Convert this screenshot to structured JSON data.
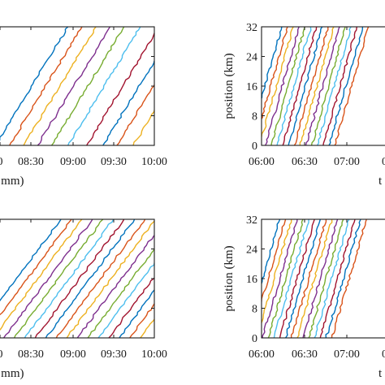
{
  "palette": [
    "#0072BD",
    "#D95319",
    "#EDB120",
    "#7E2F8E",
    "#77AC30",
    "#4DBEEE",
    "#A2142F"
  ],
  "chart_data": [
    {
      "type": "line",
      "panel": "top-left",
      "xlabel_visible": ":mm)",
      "x_ticks": [
        "0",
        "08:30",
        "09:00",
        "09:30",
        "10:00"
      ],
      "y_ticks": [],
      "trajectories": [
        {
          "x": [
            "07:44",
            "08:46"
          ],
          "y": [
            0,
            32
          ]
        },
        {
          "x": [
            "07:56",
            "08:58"
          ],
          "y": [
            0,
            32
          ]
        },
        {
          "x": [
            "08:08",
            "09:10"
          ],
          "y": [
            0,
            32
          ]
        },
        {
          "x": [
            "08:20",
            "09:22"
          ],
          "y": [
            0,
            32
          ]
        },
        {
          "x": [
            "08:32",
            "09:34"
          ],
          "y": [
            0,
            32
          ]
        },
        {
          "x": [
            "08:46",
            "09:48"
          ],
          "y": [
            0,
            32
          ]
        },
        {
          "x": [
            "09:02",
            "10:04"
          ],
          "y": [
            0,
            32
          ]
        },
        {
          "x": [
            "09:16",
            "10:18"
          ],
          "y": [
            0,
            32
          ]
        },
        {
          "x": [
            "09:28",
            "10:30"
          ],
          "y": [
            0,
            32
          ]
        },
        {
          "x": [
            "09:42",
            "10:44"
          ],
          "y": [
            0,
            32
          ]
        }
      ]
    },
    {
      "type": "line",
      "panel": "top-right",
      "ylabel": "position (km)",
      "xlabel_visible": "t",
      "x_ticks": [
        "06:00",
        "06:30",
        "07:00",
        "07"
      ],
      "y_ticks": [
        "0",
        "8",
        "16",
        "24",
        "32"
      ],
      "ylim": [
        0,
        32
      ],
      "trajectories": [
        {
          "x": [
            "05:21",
            "05:56"
          ],
          "y": [
            0,
            32
          ]
        },
        {
          "x": [
            "05:27",
            "06:02"
          ],
          "y": [
            0,
            32
          ]
        },
        {
          "x": [
            "05:33",
            "06:08"
          ],
          "y": [
            0,
            32
          ]
        },
        {
          "x": [
            "05:39",
            "06:14"
          ],
          "y": [
            0,
            32
          ]
        },
        {
          "x": [
            "05:45",
            "06:20"
          ],
          "y": [
            0,
            32
          ]
        },
        {
          "x": [
            "05:51",
            "06:26"
          ],
          "y": [
            0,
            32
          ]
        },
        {
          "x": [
            "05:57",
            "06:32"
          ],
          "y": [
            0,
            32
          ]
        },
        {
          "x": [
            "06:03",
            "06:38"
          ],
          "y": [
            0,
            32
          ]
        },
        {
          "x": [
            "06:09",
            "06:44"
          ],
          "y": [
            0,
            32
          ]
        },
        {
          "x": [
            "06:15",
            "06:50"
          ],
          "y": [
            0,
            32
          ]
        },
        {
          "x": [
            "06:21",
            "06:56"
          ],
          "y": [
            0,
            32
          ]
        },
        {
          "x": [
            "06:27",
            "07:02"
          ],
          "y": [
            0,
            32
          ]
        },
        {
          "x": [
            "06:33",
            "07:08"
          ],
          "y": [
            0,
            32
          ]
        },
        {
          "x": [
            "06:39",
            "07:14"
          ],
          "y": [
            0,
            32
          ]
        },
        {
          "x": [
            "06:45",
            "07:20"
          ],
          "y": [
            0,
            32
          ]
        },
        {
          "x": [
            "06:51",
            "07:26"
          ],
          "y": [
            0,
            32
          ]
        }
      ]
    },
    {
      "type": "line",
      "panel": "bottom-left",
      "xlabel_visible": ":mm)",
      "x_ticks": [
        "0",
        "08:30",
        "09:00",
        "09:30",
        "10:00"
      ],
      "y_ticks": [],
      "trajectories": [
        {
          "x": [
            "07:24",
            "08:40"
          ],
          "y": [
            0,
            32
          ]
        },
        {
          "x": [
            "07:33",
            "08:49"
          ],
          "y": [
            0,
            32
          ]
        },
        {
          "x": [
            "07:42",
            "08:58"
          ],
          "y": [
            0,
            32
          ]
        },
        {
          "x": [
            "07:51",
            "09:07"
          ],
          "y": [
            0,
            32
          ]
        },
        {
          "x": [
            "08:00",
            "09:16"
          ],
          "y": [
            0,
            32
          ]
        },
        {
          "x": [
            "08:09",
            "09:25"
          ],
          "y": [
            0,
            32
          ]
        },
        {
          "x": [
            "08:18",
            "09:34"
          ],
          "y": [
            0,
            32
          ]
        },
        {
          "x": [
            "08:27",
            "09:43"
          ],
          "y": [
            0,
            32
          ]
        },
        {
          "x": [
            "08:36",
            "09:52"
          ],
          "y": [
            0,
            32
          ]
        },
        {
          "x": [
            "08:45",
            "10:01"
          ],
          "y": [
            0,
            32
          ]
        },
        {
          "x": [
            "08:54",
            "10:10"
          ],
          "y": [
            0,
            32
          ]
        },
        {
          "x": [
            "09:03",
            "10:19"
          ],
          "y": [
            0,
            32
          ]
        },
        {
          "x": [
            "09:12",
            "10:28"
          ],
          "y": [
            0,
            32
          ]
        },
        {
          "x": [
            "09:21",
            "10:37"
          ],
          "y": [
            0,
            32
          ]
        },
        {
          "x": [
            "09:30",
            "10:46"
          ],
          "y": [
            0,
            32
          ]
        },
        {
          "x": [
            "09:39",
            "10:55"
          ],
          "y": [
            0,
            32
          ]
        },
        {
          "x": [
            "09:48",
            "11:04"
          ],
          "y": [
            0,
            32
          ]
        }
      ]
    },
    {
      "type": "line",
      "panel": "bottom-right",
      "ylabel": "position (km)",
      "xlabel_visible": "t",
      "x_ticks": [
        "06:00",
        "06:30",
        "07:00",
        "07"
      ],
      "y_ticks": [
        "0",
        "8",
        "16",
        "24",
        "32"
      ],
      "ylim": [
        0,
        32
      ],
      "trajectories": [
        {
          "x": [
            "05:18",
            "05:54"
          ],
          "y": [
            0,
            32
          ]
        },
        {
          "x": [
            "05:24",
            "06:00"
          ],
          "y": [
            0,
            32
          ]
        },
        {
          "x": [
            "05:30",
            "06:06"
          ],
          "y": [
            0,
            32
          ]
        },
        {
          "x": [
            "05:36",
            "06:12"
          ],
          "y": [
            0,
            32
          ]
        },
        {
          "x": [
            "05:42",
            "06:18"
          ],
          "y": [
            0,
            32
          ]
        },
        {
          "x": [
            "05:48",
            "06:24"
          ],
          "y": [
            0,
            32
          ]
        },
        {
          "x": [
            "05:54",
            "06:30"
          ],
          "y": [
            0,
            32
          ]
        },
        {
          "x": [
            "06:00",
            "06:36"
          ],
          "y": [
            0,
            32
          ]
        },
        {
          "x": [
            "06:06",
            "06:42"
          ],
          "y": [
            0,
            32
          ]
        },
        {
          "x": [
            "06:12",
            "06:48"
          ],
          "y": [
            0,
            32
          ]
        },
        {
          "x": [
            "06:18",
            "06:54"
          ],
          "y": [
            0,
            32
          ]
        },
        {
          "x": [
            "06:24",
            "07:00"
          ],
          "y": [
            0,
            32
          ]
        },
        {
          "x": [
            "06:30",
            "07:06"
          ],
          "y": [
            0,
            32
          ]
        },
        {
          "x": [
            "06:36",
            "07:12"
          ],
          "y": [
            0,
            32
          ]
        },
        {
          "x": [
            "06:42",
            "07:18"
          ],
          "y": [
            0,
            32
          ]
        },
        {
          "x": [
            "06:48",
            "07:24"
          ],
          "y": [
            0,
            32
          ]
        }
      ]
    }
  ]
}
